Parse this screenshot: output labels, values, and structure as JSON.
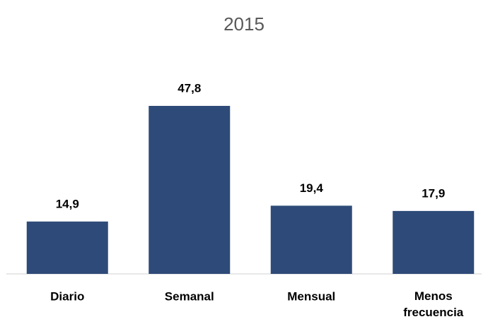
{
  "chart_data": {
    "type": "bar",
    "title": "2015",
    "categories": [
      "Diario",
      "Semanal",
      "Mensual",
      "Menos frecuencia"
    ],
    "values": [
      14.9,
      47.8,
      19.4,
      17.9
    ],
    "value_labels": [
      "14,9",
      "47,8",
      "19,4",
      "17,9"
    ],
    "color": "#2e4a78",
    "grid": false
  }
}
